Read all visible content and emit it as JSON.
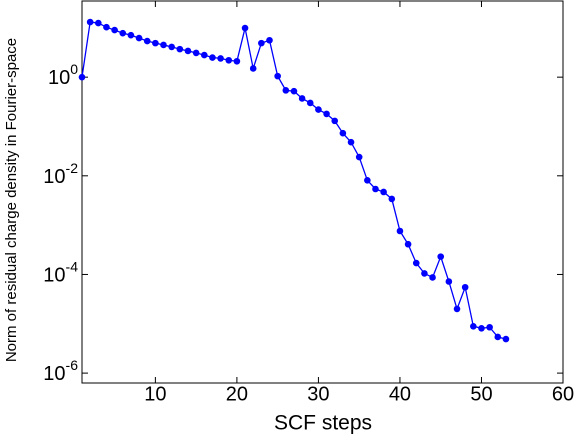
{
  "chart_data": {
    "type": "line",
    "xlabel": "SCF steps",
    "ylabel": "Norm of residual charge density in Fourier-space",
    "yscale": "log",
    "color": "#0000ff",
    "marker": "circle",
    "x": [
      1,
      2,
      3,
      4,
      5,
      6,
      7,
      8,
      9,
      10,
      11,
      12,
      13,
      14,
      15,
      16,
      17,
      18,
      19,
      20,
      21,
      22,
      23,
      24,
      25,
      26,
      27,
      28,
      29,
      30,
      31,
      32,
      33,
      34,
      35,
      36,
      37,
      38,
      39,
      40,
      41,
      42,
      43,
      44,
      45,
      46,
      47,
      48,
      49,
      50,
      51,
      52,
      53
    ],
    "values": [
      1.0,
      13.1,
      12.5,
      10.3,
      9.0,
      7.8,
      7.1,
      6.2,
      5.4,
      4.9,
      4.5,
      4.1,
      3.7,
      3.4,
      3.1,
      2.8,
      2.5,
      2.4,
      2.2,
      2.1,
      9.9,
      1.5,
      4.9,
      5.6,
      1.05,
      0.54,
      0.52,
      0.37,
      0.3,
      0.22,
      0.18,
      0.13,
      0.073,
      0.048,
      0.024,
      0.0081,
      0.0054,
      0.0047,
      0.0034,
      0.00076,
      0.00041,
      0.00017,
      0.000105,
      8.7e-05,
      0.00023,
      7.2e-05,
      2e-05,
      5.5e-05,
      8.9e-06,
      8.1e-06,
      8.5e-06,
      5.4e-06,
      4.9e-06
    ],
    "xlim": [
      1,
      60
    ],
    "xticks": [
      10,
      20,
      30,
      40,
      50,
      60
    ],
    "ylim": [
      6.3e-07,
      35
    ],
    "yticks": [
      {
        "value": 1e-06,
        "label": "10^-6"
      },
      {
        "value": 0.0001,
        "label": "10^-4"
      },
      {
        "value": 0.01,
        "label": "10^-2"
      },
      {
        "value": 1,
        "label": "10^0"
      }
    ]
  }
}
